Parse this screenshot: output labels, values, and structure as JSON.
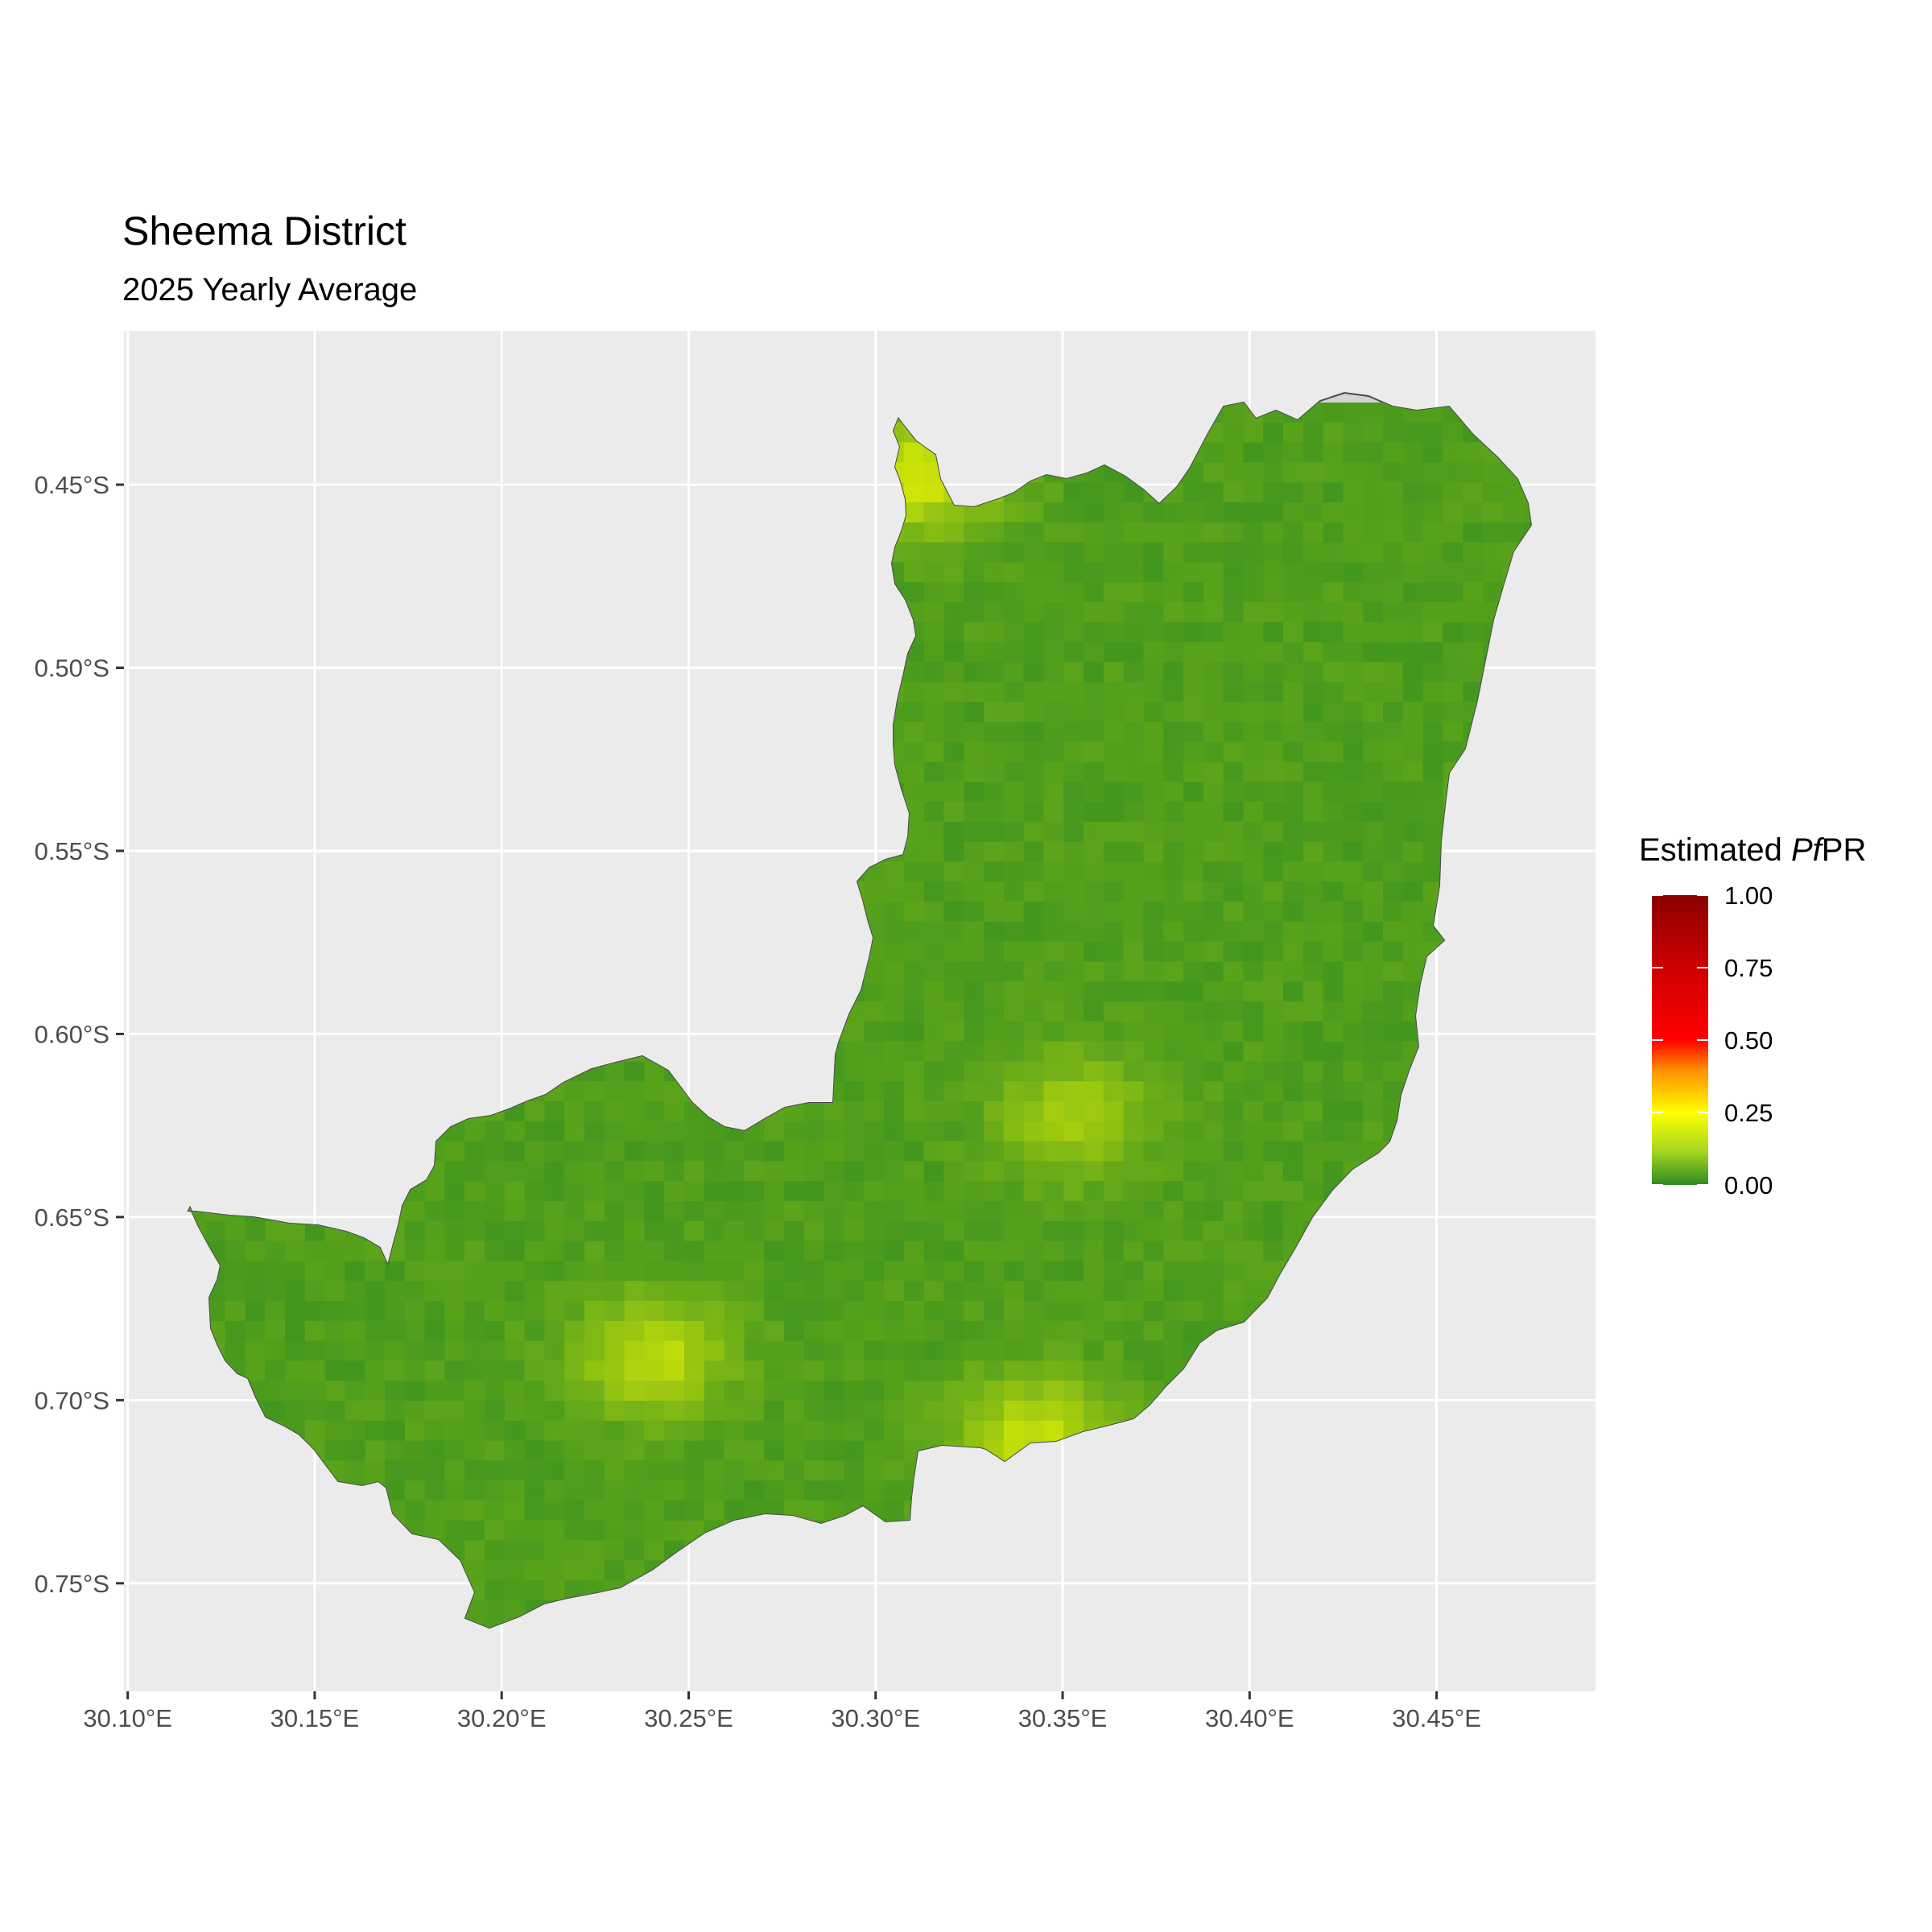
{
  "chart_data": {
    "type": "heatmap",
    "title": "Sheema District",
    "subtitle": "2025 Yearly Average",
    "legend": {
      "title_prefix": "Estimated ",
      "title_italic": "Pf",
      "title_suffix": "PR",
      "ticks": [
        "1.00",
        "0.75",
        "0.50",
        "0.25",
        "0.00"
      ],
      "range": [
        0,
        1
      ],
      "colors": [
        "#2e8b22",
        "#ffff00",
        "#ff8c00",
        "#ff0000",
        "#8b0000"
      ],
      "placement": "right"
    },
    "x_ticks": [
      "30.10°E",
      "30.15°E",
      "30.20°E",
      "30.25°E",
      "30.30°E",
      "30.35°E",
      "30.40°E",
      "30.45°E"
    ],
    "y_ticks": [
      "0.45°S",
      "0.50°S",
      "0.55°S",
      "0.60°S",
      "0.65°S",
      "0.70°S",
      "0.75°S"
    ],
    "x_values": [
      30.1,
      30.15,
      30.2,
      30.25,
      30.3,
      30.35,
      30.4,
      30.45
    ],
    "y_values": [
      -0.45,
      -0.5,
      -0.55,
      -0.6,
      -0.65,
      -0.7,
      -0.75
    ],
    "xlim": [
      30.099,
      30.4925
    ],
    "ylim": [
      -0.7795,
      -0.408
    ],
    "background_pfpr": 0.04,
    "hotspots": [
      {
        "lon": 30.238,
        "lat": -0.685,
        "value": 0.17
      },
      {
        "lon": 30.35,
        "lat": -0.62,
        "value": 0.14
      },
      {
        "lon": 30.34,
        "lat": -0.707,
        "value": 0.18
      },
      {
        "lon": 30.31,
        "lat": -0.444,
        "value": 0.2
      }
    ],
    "grid": true,
    "panel_background": "#ebebeb",
    "boundary_fill": "#d4d4d4",
    "boundary_stroke": "#4a4a4a"
  }
}
